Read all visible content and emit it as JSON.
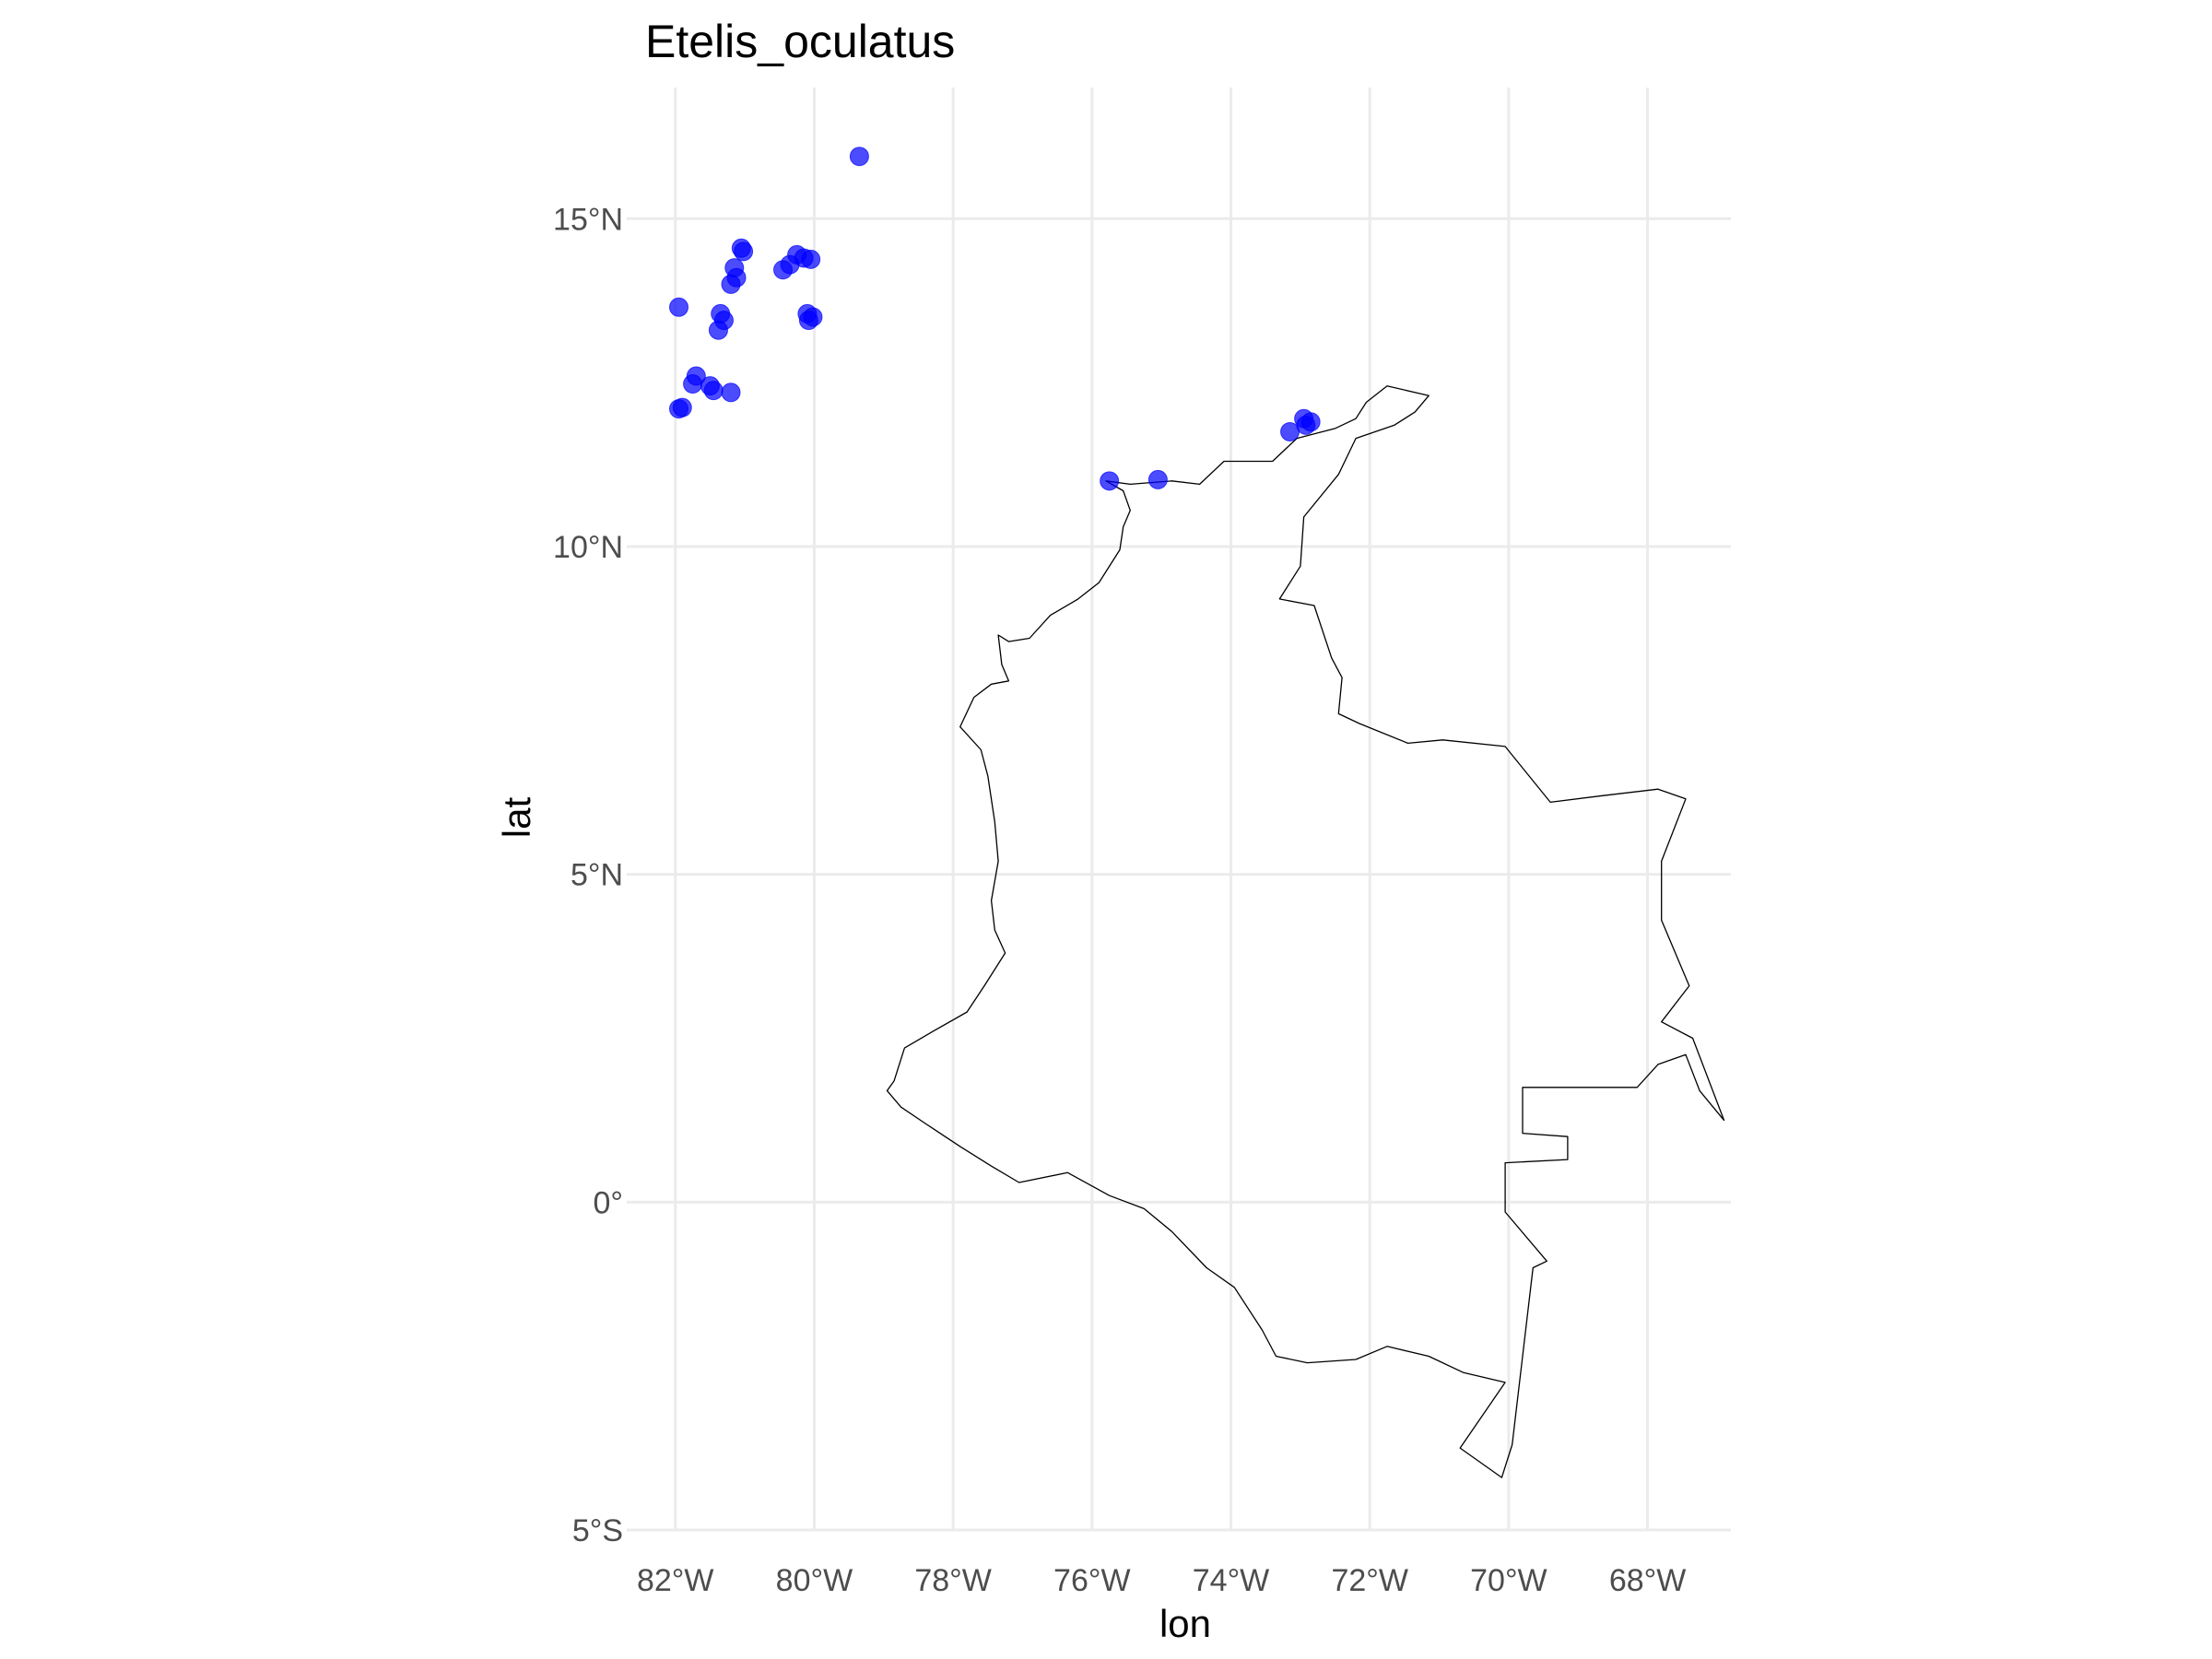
{
  "chart_data": {
    "type": "scatter",
    "title": "Etelis_oculatus",
    "xlabel": "lon",
    "ylabel": "lat",
    "xlim": [
      -82.7,
      -66.8
    ],
    "ylim": [
      -5.0,
      17.0
    ],
    "x_ticks": [
      -82,
      -80,
      -78,
      -76,
      -74,
      -72,
      -70,
      -68
    ],
    "x_tick_labels": [
      "82°W",
      "80°W",
      "78°W",
      "76°W",
      "74°W",
      "72°W",
      "70°W",
      "68°W"
    ],
    "y_ticks": [
      -5,
      0,
      5,
      10,
      15
    ],
    "y_tick_labels": [
      "5°S",
      "0°",
      "5°N",
      "10°N",
      "15°N"
    ],
    "grid": true,
    "legend": "none",
    "point_color": "#0000ff",
    "point_alpha": 0.7,
    "series": [
      {
        "points": [
          {
            "x": -79.35,
            "y": 15.95
          },
          {
            "x": -81.05,
            "y": 14.55
          },
          {
            "x": -81.02,
            "y": 14.5
          },
          {
            "x": -81.15,
            "y": 14.25
          },
          {
            "x": -81.12,
            "y": 14.1
          },
          {
            "x": -81.2,
            "y": 14.0
          },
          {
            "x": -80.25,
            "y": 14.45
          },
          {
            "x": -80.15,
            "y": 14.4
          },
          {
            "x": -80.05,
            "y": 14.38
          },
          {
            "x": -80.35,
            "y": 14.3
          },
          {
            "x": -80.45,
            "y": 14.22
          },
          {
            "x": -81.95,
            "y": 13.65
          },
          {
            "x": -81.35,
            "y": 13.55
          },
          {
            "x": -81.3,
            "y": 13.45
          },
          {
            "x": -81.38,
            "y": 13.3
          },
          {
            "x": -80.1,
            "y": 13.55
          },
          {
            "x": -80.02,
            "y": 13.5
          },
          {
            "x": -80.08,
            "y": 13.45
          },
          {
            "x": -81.7,
            "y": 12.6
          },
          {
            "x": -81.75,
            "y": 12.48
          },
          {
            "x": -81.5,
            "y": 12.45
          },
          {
            "x": -81.45,
            "y": 12.38
          },
          {
            "x": -81.2,
            "y": 12.35
          },
          {
            "x": -81.9,
            "y": 12.12
          },
          {
            "x": -81.95,
            "y": 12.1
          },
          {
            "x": -75.75,
            "y": 11.0
          },
          {
            "x": -75.05,
            "y": 11.02
          },
          {
            "x": -73.15,
            "y": 11.75
          },
          {
            "x": -72.95,
            "y": 11.95
          },
          {
            "x": -72.85,
            "y": 11.9
          },
          {
            "x": -72.92,
            "y": 11.85
          }
        ]
      }
    ],
    "country_outline": [
      [
        -75.8,
        11.0
      ],
      [
        -75.55,
        10.85
      ],
      [
        -75.45,
        10.55
      ],
      [
        -75.55,
        10.3
      ],
      [
        -75.6,
        9.95
      ],
      [
        -75.9,
        9.45
      ],
      [
        -76.2,
        9.2
      ],
      [
        -76.6,
        8.95
      ],
      [
        -76.9,
        8.6
      ],
      [
        -77.2,
        8.55
      ],
      [
        -77.35,
        8.65
      ],
      [
        -77.3,
        8.2
      ],
      [
        -77.2,
        7.95
      ],
      [
        -77.45,
        7.9
      ],
      [
        -77.7,
        7.7
      ],
      [
        -77.9,
        7.25
      ],
      [
        -77.6,
        6.9
      ],
      [
        -77.5,
        6.5
      ],
      [
        -77.4,
        5.8
      ],
      [
        -77.35,
        5.2
      ],
      [
        -77.45,
        4.6
      ],
      [
        -77.4,
        4.15
      ],
      [
        -77.25,
        3.8
      ],
      [
        -77.55,
        3.3
      ],
      [
        -77.8,
        2.9
      ],
      [
        -78.3,
        2.6
      ],
      [
        -78.7,
        2.35
      ],
      [
        -78.85,
        1.85
      ],
      [
        -78.95,
        1.7
      ],
      [
        -78.75,
        1.45
      ],
      [
        -78.4,
        1.2
      ],
      [
        -77.9,
        0.85
      ],
      [
        -77.45,
        0.55
      ],
      [
        -77.05,
        0.3
      ],
      [
        -76.35,
        0.45
      ],
      [
        -75.75,
        0.1
      ],
      [
        -75.25,
        -0.1
      ],
      [
        -74.85,
        -0.45
      ],
      [
        -74.35,
        -1.0
      ],
      [
        -73.95,
        -1.3
      ],
      [
        -73.55,
        -1.95
      ],
      [
        -73.35,
        -2.35
      ],
      [
        -72.9,
        -2.45
      ],
      [
        -72.2,
        -2.4
      ],
      [
        -71.75,
        -2.2
      ],
      [
        -71.15,
        -2.35
      ],
      [
        -70.65,
        -2.6
      ],
      [
        -70.05,
        -2.75
      ],
      [
        -70.7,
        -3.75
      ],
      [
        -70.1,
        -4.2
      ],
      [
        -69.95,
        -3.7
      ],
      [
        -69.65,
        -1.0
      ],
      [
        -69.45,
        -0.9
      ],
      [
        -70.05,
        -0.15
      ],
      [
        -70.05,
        0.6
      ],
      [
        -69.15,
        0.65
      ],
      [
        -69.15,
        1.0
      ],
      [
        -69.8,
        1.05
      ],
      [
        -69.8,
        1.75
      ],
      [
        -68.15,
        1.75
      ],
      [
        -67.85,
        2.1
      ],
      [
        -67.45,
        2.25
      ],
      [
        -67.25,
        1.7
      ],
      [
        -66.9,
        1.25
      ],
      [
        -67.35,
        2.5
      ],
      [
        -67.8,
        2.75
      ],
      [
        -67.4,
        3.3
      ],
      [
        -67.8,
        4.3
      ],
      [
        -67.8,
        5.2
      ],
      [
        -67.45,
        6.15
      ],
      [
        -67.85,
        6.3
      ],
      [
        -68.65,
        6.2
      ],
      [
        -69.4,
        6.1
      ],
      [
        -70.05,
        6.95
      ],
      [
        -70.95,
        7.05
      ],
      [
        -71.45,
        7.0
      ],
      [
        -72.15,
        7.3
      ],
      [
        -72.45,
        7.45
      ],
      [
        -72.4,
        8.0
      ],
      [
        -72.55,
        8.3
      ],
      [
        -72.8,
        9.1
      ],
      [
        -73.3,
        9.2
      ],
      [
        -73.0,
        9.7
      ],
      [
        -72.95,
        10.45
      ],
      [
        -72.45,
        11.1
      ],
      [
        -72.2,
        11.65
      ],
      [
        -71.65,
        11.85
      ],
      [
        -71.35,
        12.05
      ],
      [
        -71.15,
        12.3
      ],
      [
        -71.75,
        12.45
      ],
      [
        -72.05,
        12.2
      ],
      [
        -72.2,
        11.95
      ],
      [
        -72.5,
        11.8
      ],
      [
        -73.05,
        11.65
      ],
      [
        -73.4,
        11.3
      ],
      [
        -74.1,
        11.3
      ],
      [
        -74.45,
        10.95
      ],
      [
        -74.85,
        11.0
      ],
      [
        -75.45,
        10.95
      ],
      [
        -75.8,
        11.0
      ]
    ]
  }
}
